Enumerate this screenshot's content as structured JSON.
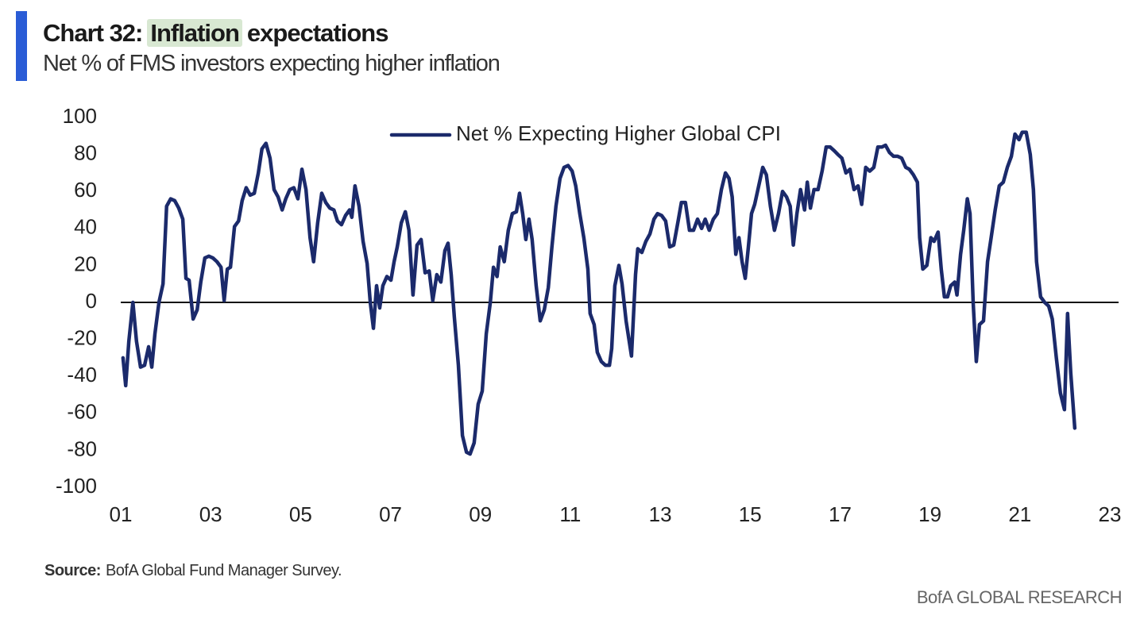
{
  "chart_data": {
    "type": "line",
    "title": [
      "Chart 32:",
      "Inflation",
      "expectations"
    ],
    "subtitle": "Net % of FMS investors expecting higher inflation",
    "source_label": "Source:",
    "source": "BofA Global Fund Manager Survey.",
    "brand": "BofA GLOBAL RESEARCH",
    "xlim": [
      2001,
      2023
    ],
    "xticks": [
      {
        "value": 2001,
        "label": "01"
      },
      {
        "value": 2003,
        "label": "03"
      },
      {
        "value": 2005,
        "label": "05"
      },
      {
        "value": 2007,
        "label": "07"
      },
      {
        "value": 2009,
        "label": "09"
      },
      {
        "value": 2011,
        "label": "11"
      },
      {
        "value": 2013,
        "label": "13"
      },
      {
        "value": 2015,
        "label": "15"
      },
      {
        "value": 2017,
        "label": "17"
      },
      {
        "value": 2019,
        "label": "19"
      },
      {
        "value": 2021,
        "label": "21"
      },
      {
        "value": 2023,
        "label": "23"
      }
    ],
    "ylim": [
      -100,
      100
    ],
    "yticks": [
      -100,
      -80,
      -60,
      -40,
      -20,
      0,
      20,
      40,
      60,
      80,
      100
    ],
    "grid": false,
    "legend": "top",
    "x": [
      2001.05,
      2001.11,
      2001.18,
      2001.27,
      2001.35,
      2001.44,
      2001.53,
      2001.62,
      2001.69,
      2001.76,
      2001.85,
      2001.94,
      2002.02,
      2002.11,
      2002.2,
      2002.29,
      2002.38,
      2002.45,
      2002.52,
      2002.61,
      2002.7,
      2002.78,
      2002.87,
      2002.96,
      2003.05,
      2003.14,
      2003.23,
      2003.3,
      2003.37,
      2003.44,
      2003.53,
      2003.62,
      2003.7,
      2003.79,
      2003.88,
      2003.97,
      2004.06,
      2004.14,
      2004.23,
      2004.32,
      2004.41,
      2004.5,
      2004.59,
      2004.67,
      2004.76,
      2004.85,
      2004.94,
      2005.03,
      2005.12,
      2005.21,
      2005.29,
      2005.38,
      2005.47,
      2005.56,
      2005.65,
      2005.74,
      2005.82,
      2005.91,
      2006,
      2006.09,
      2006.14,
      2006.21,
      2006.3,
      2006.39,
      2006.48,
      2006.55,
      2006.62,
      2006.69,
      2006.76,
      2006.83,
      2006.92,
      2007.01,
      2007.08,
      2007.15,
      2007.24,
      2007.33,
      2007.41,
      2007.5,
      2007.59,
      2007.68,
      2007.77,
      2007.86,
      2007.94,
      2008.03,
      2008.12,
      2008.21,
      2008.28,
      2008.35,
      2008.42,
      2008.51,
      2008.6,
      2008.69,
      2008.77,
      2008.86,
      2008.95,
      2009.04,
      2009.13,
      2009.22,
      2009.29,
      2009.37,
      2009.44,
      2009.53,
      2009.62,
      2009.71,
      2009.8,
      2009.87,
      2009.94,
      2010.01,
      2010.08,
      2010.15,
      2010.24,
      2010.33,
      2010.42,
      2010.51,
      2010.59,
      2010.68,
      2010.77,
      2010.86,
      2010.95,
      2011.04,
      2011.12,
      2011.21,
      2011.3,
      2011.39,
      2011.44,
      2011.53,
      2011.6,
      2011.69,
      2011.78,
      2011.87,
      2011.92,
      2011.99,
      2012.08,
      2012.15,
      2012.24,
      2012.36,
      2012.45,
      2012.5,
      2012.59,
      2012.68,
      2012.77,
      2012.86,
      2012.94,
      2013.03,
      2013.12,
      2013.21,
      2013.3,
      2013.39,
      2013.47,
      2013.56,
      2013.65,
      2013.74,
      2013.83,
      2013.92,
      2014,
      2014.09,
      2014.18,
      2014.27,
      2014.36,
      2014.45,
      2014.53,
      2014.6,
      2014.68,
      2014.75,
      2014.82,
      2014.89,
      2014.96,
      2015.03,
      2015.1,
      2015.19,
      2015.28,
      2015.36,
      2015.45,
      2015.54,
      2015.63,
      2015.72,
      2015.81,
      2015.89,
      2015.96,
      2016.04,
      2016.12,
      2016.21,
      2016.27,
      2016.34,
      2016.42,
      2016.51,
      2016.6,
      2016.69,
      2016.78,
      2016.87,
      2016.95,
      2017.04,
      2017.13,
      2017.22,
      2017.31,
      2017.4,
      2017.48,
      2017.57,
      2017.66,
      2017.75,
      2017.84,
      2017.93,
      2018.01,
      2018.1,
      2018.19,
      2018.28,
      2018.37,
      2018.46,
      2018.54,
      2018.63,
      2018.72,
      2018.77,
      2018.84,
      2018.93,
      2019.02,
      2019.09,
      2019.18,
      2019.25,
      2019.32,
      2019.39,
      2019.46,
      2019.55,
      2019.6,
      2019.68,
      2019.75,
      2019.83,
      2019.89,
      2019.96,
      2020.03,
      2020.1,
      2020.19,
      2020.28,
      2020.36,
      2020.45,
      2020.54,
      2020.63,
      2020.72,
      2020.81,
      2020.89,
      2020.98,
      2021.05,
      2021.14,
      2021.23,
      2021.3,
      2021.37,
      2021.46,
      2021.55,
      2021.64,
      2021.72,
      2021.81,
      2021.9,
      2021.99,
      2022.06,
      2022.13,
      2022.22
    ],
    "series": [
      {
        "name": "Net % Expecting Higher Global CPI",
        "color": "#1b2a6b",
        "values": [
          -30,
          -45,
          -21,
          0,
          -21,
          -35,
          -34,
          -24,
          -35,
          -17,
          0,
          10,
          52,
          56,
          55,
          51,
          45,
          13,
          12,
          -9,
          -4,
          11,
          24,
          25,
          24,
          22,
          19,
          1,
          18,
          19,
          41,
          44,
          55,
          62,
          58,
          59,
          70,
          83,
          86,
          78,
          61,
          57,
          50,
          56,
          61,
          62,
          56,
          72,
          61,
          35,
          22,
          43,
          59,
          54,
          51,
          50,
          44,
          42,
          47,
          50,
          46,
          63,
          52,
          33,
          21,
          0,
          -14,
          9,
          -3,
          9,
          14,
          12,
          22,
          30,
          43,
          49,
          39,
          4,
          31,
          34,
          16,
          17,
          1,
          15,
          11,
          28,
          32,
          15,
          -8,
          -34,
          -72,
          -81,
          -82,
          -76,
          -55,
          -48,
          -17,
          0,
          19,
          14,
          30,
          22,
          39,
          48,
          49,
          59,
          48,
          34,
          45,
          34,
          9,
          -10,
          -4,
          8,
          30,
          52,
          67,
          73,
          74,
          71,
          63,
          48,
          35,
          18,
          -6,
          -12,
          -27,
          -32,
          -34,
          -34,
          -25,
          9,
          20,
          10,
          -10,
          -29,
          15,
          29,
          27,
          33,
          37,
          45,
          48,
          47,
          44,
          30,
          31,
          43,
          54,
          54,
          39,
          39,
          45,
          40,
          45,
          39,
          45,
          48,
          61,
          70,
          67,
          57,
          26,
          35,
          22,
          13,
          30,
          48,
          53,
          63,
          73,
          69,
          52,
          39,
          48,
          60,
          57,
          52,
          31,
          48,
          61,
          50,
          65,
          51,
          61,
          61,
          71,
          84,
          84,
          82,
          80,
          78,
          70,
          72,
          61,
          63,
          53,
          73,
          71,
          73,
          84,
          84,
          85,
          81,
          79,
          79,
          78,
          73,
          72,
          69,
          65,
          35,
          18,
          20,
          35,
          33,
          38,
          18,
          3,
          3,
          9,
          11,
          4,
          26,
          39,
          56,
          48,
          0,
          -32,
          -12,
          -10,
          22,
          35,
          50,
          63,
          65,
          73,
          79,
          91,
          88,
          92,
          92,
          80,
          61,
          22,
          3,
          0,
          -2,
          -9,
          -30,
          -49,
          -58,
          -6,
          -38,
          -68
        ]
      }
    ]
  }
}
